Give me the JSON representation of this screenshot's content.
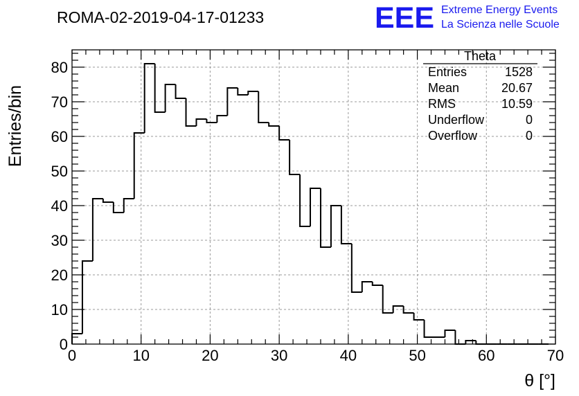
{
  "header": {
    "title": "ROMA-02-2019-04-17-01233"
  },
  "logo": {
    "mark": "EEE",
    "line1": "Extreme Energy Events",
    "line2": "La Scienza nelle Scuole",
    "color": "#1a1aee"
  },
  "stats_box": {
    "name": "Theta",
    "rows": [
      {
        "label": "Entries",
        "value": "1528"
      },
      {
        "label": "Mean",
        "value": "20.67"
      },
      {
        "label": "RMS",
        "value": "10.59"
      },
      {
        "label": "Underflow",
        "value": "0"
      },
      {
        "label": "Overflow",
        "value": "0"
      }
    ]
  },
  "chart_data": {
    "type": "histogram",
    "title": "ROMA-02-2019-04-17-01233",
    "xlabel": "θ [°]",
    "ylabel": "Entries/bin",
    "xlim": [
      0,
      70
    ],
    "ylim": [
      0,
      85
    ],
    "bin_width": 1.5,
    "xticks": [
      0,
      10,
      20,
      30,
      40,
      50,
      60,
      70
    ],
    "yticks": [
      0,
      10,
      20,
      30,
      40,
      50,
      60,
      70,
      80
    ],
    "grid": true,
    "line_color": "#000000",
    "values": [
      3,
      24,
      42,
      41,
      38,
      42,
      61,
      81,
      67,
      75,
      71,
      63,
      65,
      64,
      66,
      74,
      72,
      73,
      64,
      63,
      59,
      49,
      34,
      45,
      28,
      40,
      29,
      15,
      18,
      17,
      9,
      11,
      9,
      7,
      2,
      2,
      4,
      0,
      1,
      0,
      0,
      0,
      0,
      0,
      0,
      0
    ]
  }
}
